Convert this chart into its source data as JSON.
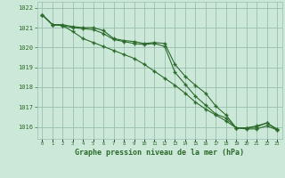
{
  "x": [
    0,
    1,
    2,
    3,
    4,
    5,
    6,
    7,
    8,
    9,
    10,
    11,
    12,
    13,
    14,
    15,
    16,
    17,
    18,
    19,
    20,
    21,
    22,
    23
  ],
  "line1": [
    1021.65,
    1021.15,
    1021.15,
    1021.05,
    1021.0,
    1021.0,
    1020.85,
    1020.45,
    1020.35,
    1020.3,
    1020.2,
    1020.25,
    1020.2,
    1019.15,
    1018.55,
    1018.1,
    1017.7,
    1017.05,
    1016.6,
    1015.95,
    1015.95,
    1016.05,
    1016.2,
    1015.9
  ],
  "line2": [
    1021.65,
    1021.15,
    1021.1,
    1020.8,
    1020.45,
    1020.25,
    1020.05,
    1019.85,
    1019.65,
    1019.45,
    1019.15,
    1018.8,
    1018.45,
    1018.1,
    1017.7,
    1017.25,
    1016.9,
    1016.6,
    1016.3,
    1015.95,
    1015.9,
    1015.9,
    1016.05,
    1015.85
  ],
  "line3": [
    1021.65,
    1021.15,
    1021.1,
    1021.0,
    1020.95,
    1020.9,
    1020.7,
    1020.4,
    1020.3,
    1020.2,
    1020.15,
    1020.2,
    1020.05,
    1018.75,
    1018.15,
    1017.55,
    1017.1,
    1016.65,
    1016.45,
    1015.95,
    1015.95,
    1016.0,
    1016.2,
    1015.85
  ],
  "line_color": "#2d6a2d",
  "bg_color": "#cce8d8",
  "grid_color": "#9abfaf",
  "ylabel_ticks": [
    1016,
    1017,
    1018,
    1019,
    1020,
    1021,
    1022
  ],
  "xlabel": "Graphe pression niveau de la mer (hPa)",
  "ylim": [
    1015.4,
    1022.3
  ],
  "xlim": [
    -0.5,
    23.5
  ]
}
